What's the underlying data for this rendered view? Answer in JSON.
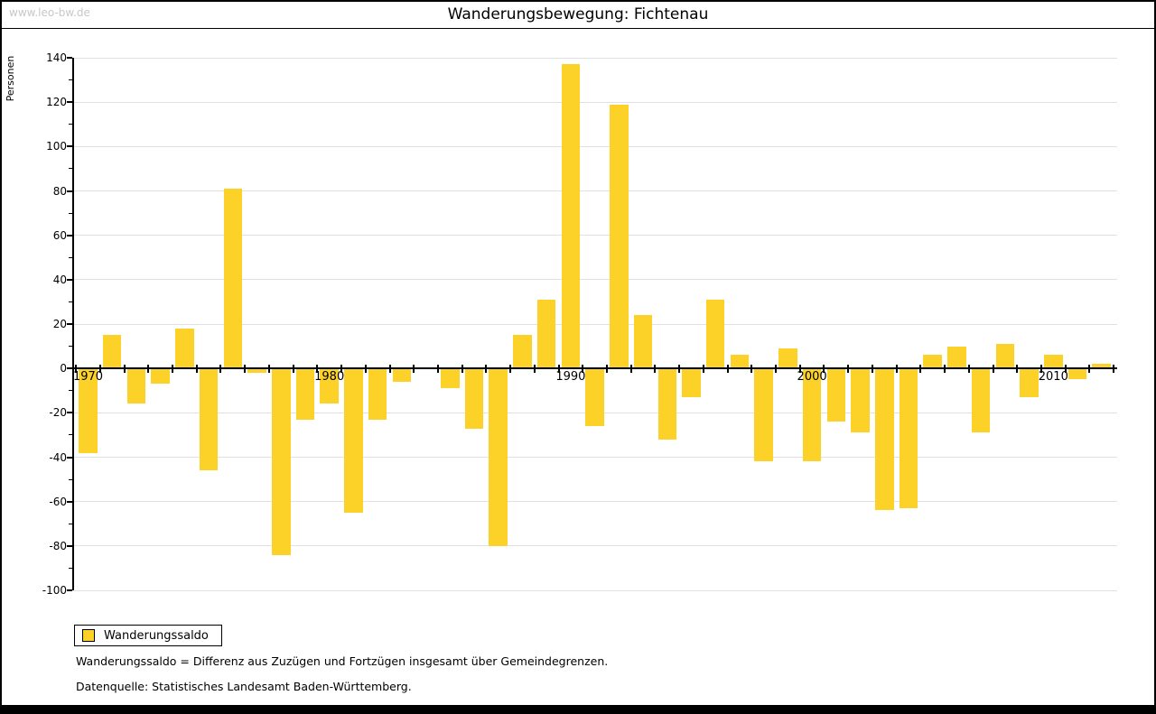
{
  "watermark": "www.leo-bw.de",
  "title": "Wanderungsbewegung: Fichtenau",
  "y_axis_label": "Personen",
  "legend": {
    "label": "Wanderungssaldo"
  },
  "footnotes": [
    "Wanderungssaldo = Differenz aus Zuzügen und Fortzügen insgesamt über Gemeindegrenzen.",
    "Datenquelle: Statistisches Landesamt Baden-Württemberg."
  ],
  "colors": {
    "bar": "#FCD128",
    "grid": "#E0E0E0",
    "axis": "#000000",
    "watermark": "#C8C8C8"
  },
  "chart_data": {
    "type": "bar",
    "title": "Wanderungsbewegung: Fichtenau",
    "xlabel": "",
    "ylabel": "Personen",
    "series_name": "Wanderungssaldo",
    "x": [
      1970,
      1971,
      1972,
      1973,
      1974,
      1975,
      1976,
      1977,
      1978,
      1979,
      1980,
      1981,
      1982,
      1983,
      1984,
      1985,
      1986,
      1987,
      1988,
      1989,
      1990,
      1991,
      1992,
      1993,
      1994,
      1995,
      1996,
      1997,
      1998,
      1999,
      2000,
      2001,
      2002,
      2003,
      2004,
      2005,
      2006,
      2007,
      2008,
      2009,
      2010,
      2011,
      2012
    ],
    "values": [
      -38,
      15,
      -16,
      -7,
      18,
      -46,
      81,
      -2,
      -84,
      -23,
      -16,
      -65,
      -23,
      -6,
      0,
      -9,
      -27,
      -80,
      15,
      31,
      137,
      -26,
      119,
      24,
      -32,
      -13,
      31,
      6,
      -42,
      9,
      -42,
      -24,
      -29,
      -64,
      -63,
      6,
      10,
      -29,
      11,
      -13,
      6,
      -5,
      2
    ],
    "ylim": [
      -100,
      140
    ],
    "ytick_step": 20,
    "ytick_minor_step": 10,
    "xticks_labeled": [
      1970,
      1980,
      1990,
      2000,
      2010
    ],
    "grid": true,
    "legend_position": "bottom-left"
  }
}
